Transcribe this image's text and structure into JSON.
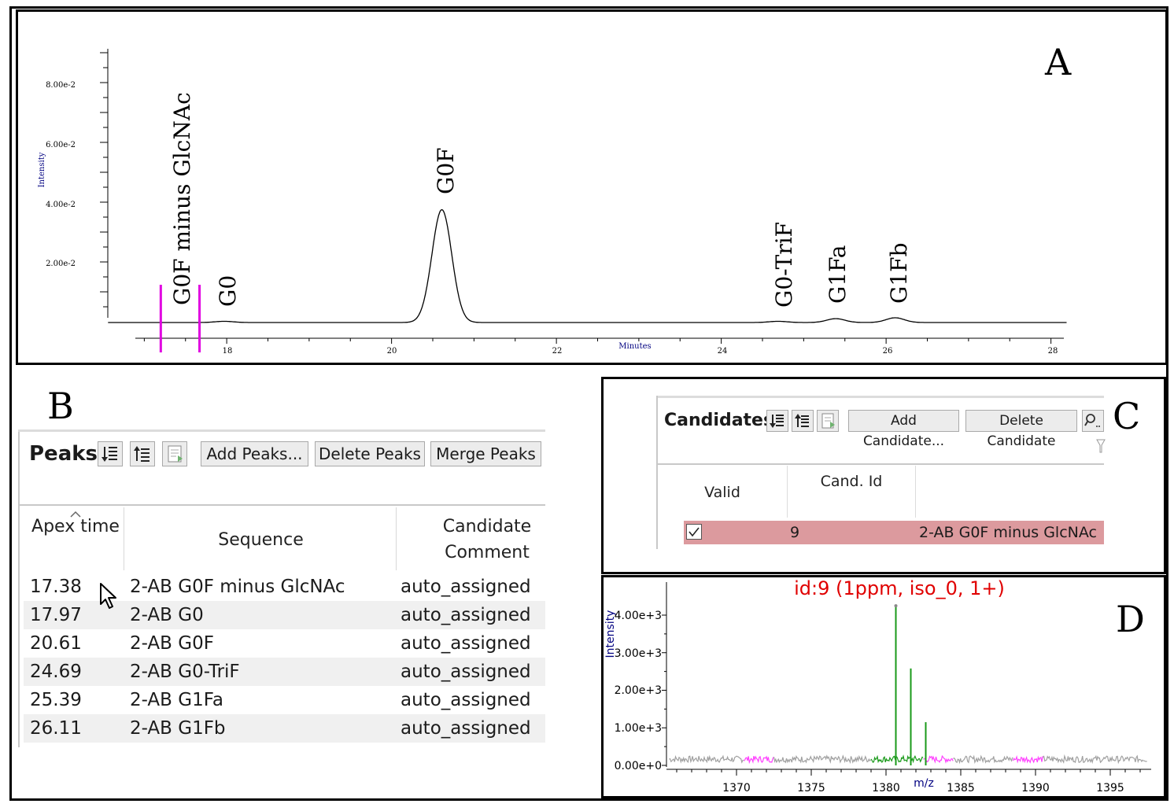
{
  "panel_letters": {
    "a": "A",
    "b": "B",
    "c": "C",
    "d": "D"
  },
  "panel_a": {
    "y_axis_label": "Intensity",
    "x_axis_label": "Minutes",
    "y_ticks": [
      "8.00e-2",
      "6.00e-2",
      "4.00e-2",
      "2.00e-2"
    ],
    "x_ticks": [
      "18",
      "20",
      "22",
      "24",
      "26",
      "28"
    ],
    "peak_labels": [
      "G0F minus GlcNAc",
      "G0",
      "G0F",
      "G0-TriF",
      "G1Fa",
      "G1Fb"
    ],
    "marker_color": "#e000e0"
  },
  "peaks": {
    "title": "Peaks",
    "buttons": {
      "add": "Add Peaks...",
      "delete": "Delete Peaks",
      "merge": "Merge Peaks"
    },
    "headers": {
      "apex": "Apex time",
      "sequence": "Sequence",
      "comment": "Candidate Comment"
    },
    "rows": [
      {
        "apex": "17.38",
        "sequence": "2-AB G0F minus GlcNAc",
        "comment": "auto_assigned"
      },
      {
        "apex": "17.97",
        "sequence": "2-AB G0",
        "comment": "auto_assigned"
      },
      {
        "apex": "20.61",
        "sequence": "2-AB G0F",
        "comment": "auto_assigned"
      },
      {
        "apex": "24.69",
        "sequence": "2-AB G0-TriF",
        "comment": "auto_assigned"
      },
      {
        "apex": "25.39",
        "sequence": "2-AB G1Fa",
        "comment": "auto_assigned"
      },
      {
        "apex": "26.11",
        "sequence": "2-AB G1Fb",
        "comment": "auto_assigned"
      }
    ]
  },
  "candidates": {
    "title": "Candidates",
    "buttons": {
      "add": "Add Candidate...",
      "delete": "Delete Candidate"
    },
    "headers": {
      "valid": "Valid",
      "cand_id": "Cand. Id"
    },
    "row": {
      "id": "9",
      "name": "2-AB G0F minus GlcNAc",
      "checked": true,
      "highlight_color": "#dc9a9e"
    }
  },
  "spectrum": {
    "title": "id:9 (1ppm, iso_0, 1+)",
    "title_color": "#e00000",
    "y_axis_label": "Intensity",
    "x_axis_label": "m/z",
    "y_ticks": [
      "4.00e+3",
      "3.00e+3",
      "2.00e+3",
      "1.00e+3",
      "0.00e+0"
    ],
    "x_ticks": [
      "1370",
      "1375",
      "1380",
      "1385",
      "1390",
      "1395"
    ],
    "colors": {
      "peak": "#1a9a1a",
      "noise": "#a0a0a0",
      "window": "#ff40ff"
    }
  },
  "chart_data": [
    {
      "type": "line",
      "xlabel": "Minutes",
      "ylabel": "Intensity",
      "xlim": [
        16.5,
        28.5
      ],
      "ylim": [
        0,
        0.09
      ],
      "x": [
        16.5,
        17.38,
        17.97,
        19.0,
        20.3,
        20.45,
        20.61,
        20.8,
        21.0,
        22.0,
        24.0,
        24.69,
        25.0,
        25.39,
        25.7,
        26.11,
        26.5,
        28.5
      ],
      "series": [
        {
          "values": [
            0.0,
            0.0002,
            0.0004,
            0.0,
            0.001,
            0.015,
            0.038,
            0.018,
            0.001,
            0.0,
            0.0,
            0.0004,
            0.0,
            0.0013,
            0.0,
            0.0016,
            0.0,
            0.0
          ]
        }
      ],
      "markers_x": [
        17.2,
        17.67
      ]
    },
    {
      "type": "bar",
      "xlabel": "m/z",
      "ylabel": "Intensity",
      "title": "id:9 (1ppm, iso_0, 1+)",
      "xlim": [
        1366,
        1398
      ],
      "ylim": [
        0,
        4600
      ],
      "x": [
        1380.5,
        1381.5,
        1382.5
      ],
      "values": [
        4250,
        2580,
        1150
      ]
    }
  ]
}
